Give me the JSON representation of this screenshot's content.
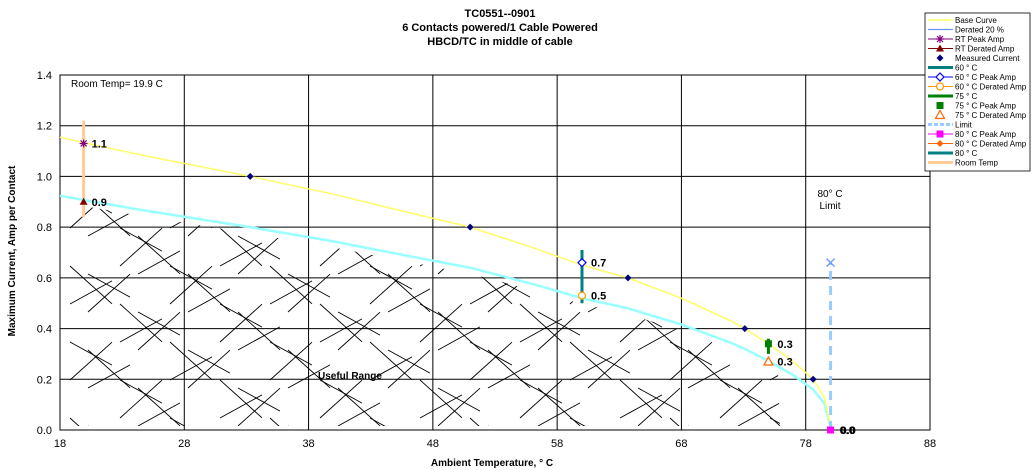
{
  "chart_data": {
    "type": "line",
    "title_lines": [
      "TC0551--0901",
      "6 Contacts powered/1 Cable Powered",
      "HBCD/TC in middle of cable"
    ],
    "xlabel": "Ambient Temperature,  ° C",
    "ylabel": "Maximum Current, Amp per Contact",
    "xlim": [
      18,
      88
    ],
    "ylim": [
      0,
      1.4
    ],
    "xticks": [
      "18",
      "28",
      "38",
      "48",
      "58",
      "68",
      "78",
      "88"
    ],
    "yticks": [
      "0.0",
      "0.2",
      "0.4",
      "0.6",
      "0.8",
      "1.0",
      "1.2",
      "1.4"
    ],
    "grid": true,
    "annotations": {
      "room_temp": "Room Temp= 19.9 C",
      "useful_range": "Useful Range",
      "limit_line1": "80° C",
      "limit_line2": "Limit"
    },
    "colors": {
      "base_curve": "#ffff66",
      "derated": "#99ffff",
      "measured": "#000080",
      "rt_peak": "#800080",
      "rt_derated": "#800000",
      "c60": "#008080",
      "c60_peak": "#0000ff",
      "c60_derated": "#ff9900",
      "c75": "#008000",
      "c75_peak": "#008000",
      "c75_derated": "#ff6600",
      "limit": "#99ccff",
      "c80_peak": "#ff00ff",
      "c80_derated": "#ff6600",
      "c80": "#008080",
      "room_temp": "#ffcc99"
    },
    "series": [
      {
        "name": "Base Curve",
        "x": [
          18,
          20,
          25,
          33.3,
          40,
          45,
          51,
          56,
          60,
          63.7,
          68,
          72,
          73.1,
          75,
          77,
          78.6,
          79.5,
          80
        ],
        "y": [
          1.155,
          1.132,
          1.08,
          1.0,
          0.93,
          0.87,
          0.8,
          0.72,
          0.65,
          0.6,
          0.52,
          0.43,
          0.4,
          0.34,
          0.27,
          0.2,
          0.13,
          0.01
        ]
      },
      {
        "name": "Derated 20 %",
        "x": [
          18,
          20,
          25,
          33.3,
          40,
          45,
          51,
          56,
          60,
          63.7,
          68,
          72,
          73.1,
          75,
          77,
          78.6,
          79.5,
          80
        ],
        "y": [
          0.924,
          0.906,
          0.864,
          0.8,
          0.744,
          0.696,
          0.64,
          0.576,
          0.52,
          0.48,
          0.416,
          0.344,
          0.32,
          0.272,
          0.216,
          0.16,
          0.104,
          0.01
        ]
      },
      {
        "name": "Measured Current",
        "x": [
          33.3,
          51,
          63.7,
          73.1,
          78.6
        ],
        "y": [
          1.0,
          0.8,
          0.6,
          0.4,
          0.2
        ]
      },
      {
        "name": "RT Peak Amp",
        "x": [
          19.9
        ],
        "y": [
          1.13
        ],
        "label": "1.1"
      },
      {
        "name": "RT Derated Amp",
        "x": [
          19.9
        ],
        "y": [
          0.9
        ],
        "label": "0.9"
      },
      {
        "name": "60  ° C",
        "x": [
          60,
          60
        ],
        "y": [
          0.5,
          0.71
        ]
      },
      {
        "name": "60  ° C Peak Amp",
        "x": [
          60
        ],
        "y": [
          0.66
        ],
        "label": "0.7"
      },
      {
        "name": "60  ° C Derated Amp",
        "x": [
          60
        ],
        "y": [
          0.53
        ],
        "label": "0.5"
      },
      {
        "name": "75  ° C",
        "x": [
          75,
          75
        ],
        "y": [
          0.3,
          0.36
        ]
      },
      {
        "name": "75  ° C Peak Amp",
        "x": [
          75
        ],
        "y": [
          0.34
        ],
        "label": "0.3"
      },
      {
        "name": "75  ° C Derated Amp",
        "x": [
          75
        ],
        "y": [
          0.27
        ],
        "label": "0.3"
      },
      {
        "name": "Limit",
        "x": [
          80,
          80
        ],
        "y": [
          0,
          0.66
        ]
      },
      {
        "name": "80  ° C Peak Amp",
        "x": [
          80
        ],
        "y": [
          0.0
        ],
        "label": "0.0"
      },
      {
        "name": "80  ° C Derated Amp",
        "x": [
          80
        ],
        "y": [
          0.0
        ],
        "label": "0.0"
      },
      {
        "name": "80  ° C",
        "x": [
          80
        ],
        "y": [
          0.0
        ]
      },
      {
        "name": "Room Temp",
        "x": [
          19.9,
          19.9
        ],
        "y": [
          0.84,
          1.22
        ]
      }
    ],
    "legend": {
      "placement": "top-right",
      "entries": [
        "Base Curve",
        "Derated 20 %",
        "RT Peak Amp",
        "RT Derated Amp",
        "Measured Current",
        "60  ° C",
        "60  ° C Peak Amp",
        "60  ° C Derated Amp",
        "75  ° C",
        "75  ° C Peak Amp",
        "75  ° C Derated Amp",
        "Limit",
        "80  ° C Peak Amp",
        "80  ° C Derated Amp",
        "80  ° C",
        "Room Temp"
      ]
    }
  }
}
